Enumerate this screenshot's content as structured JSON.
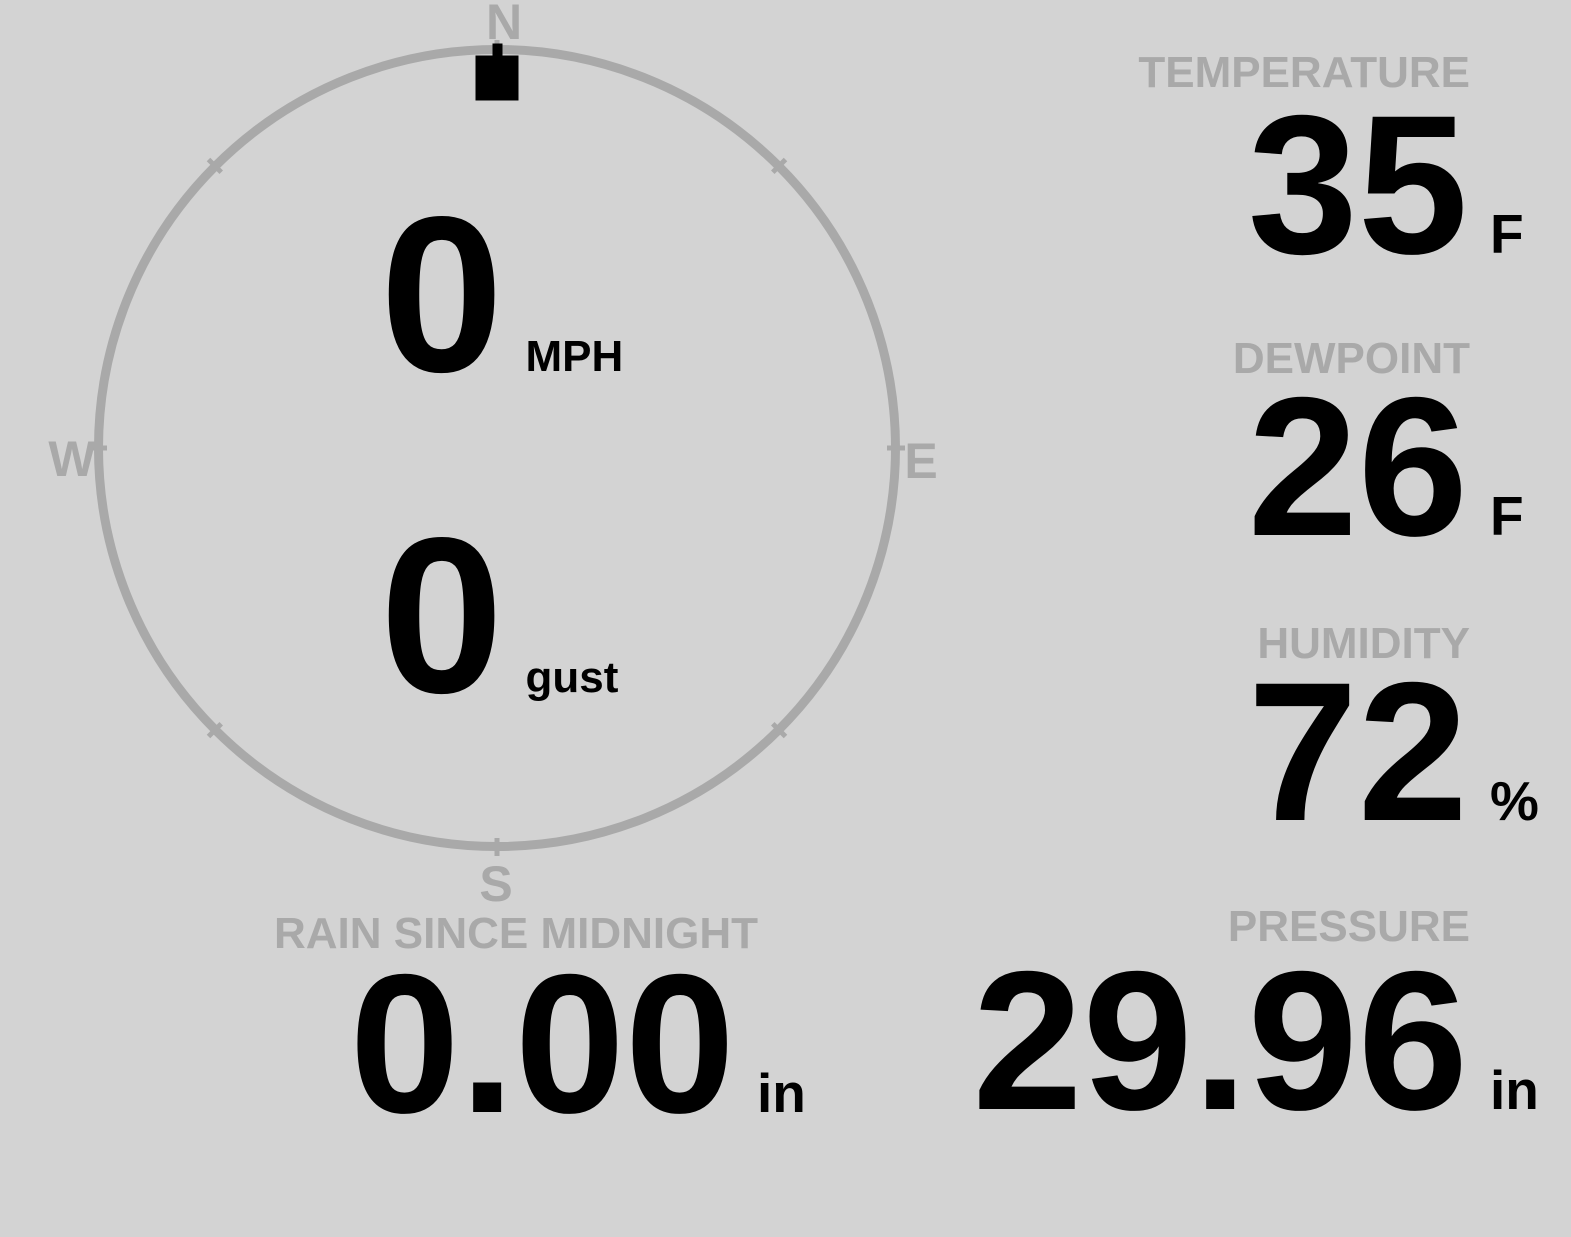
{
  "colors": {
    "background": "#d3d3d3",
    "muted_gray": "#a9a9a9",
    "value_black": "#000000"
  },
  "wind_gauge": {
    "compass_labels": {
      "north": "N",
      "east": "E",
      "south": "S",
      "west": "W"
    },
    "direction_deg": 0,
    "speed": {
      "value": "0",
      "unit": "MPH"
    },
    "gust": {
      "value": "0",
      "unit": "gust"
    }
  },
  "metrics": {
    "temperature": {
      "label": "TEMPERATURE",
      "value": "35",
      "unit": "F"
    },
    "dewpoint": {
      "label": "DEWPOINT",
      "value": "26",
      "unit": "F"
    },
    "humidity": {
      "label": "HUMIDITY",
      "value": "72",
      "unit": "%"
    },
    "pressure": {
      "label": "PRESSURE",
      "value": "29.96",
      "unit": "in"
    },
    "rain_since_midnight": {
      "label": "RAIN SINCE MIDNIGHT",
      "value": "0.00",
      "unit": "in"
    }
  }
}
